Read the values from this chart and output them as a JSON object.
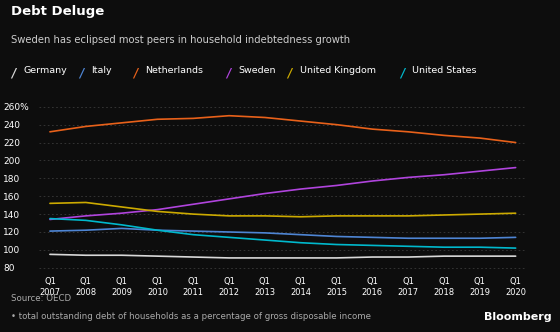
{
  "title": "Debt Deluge",
  "subtitle": "Sweden has eclipsed most peers in household indebtedness growth",
  "source": "Source: OECD",
  "footnote": "• total outstanding debt of households as a percentage of gross disposable income",
  "bloomberg": "Bloomberg",
  "background_color": "#0d0d0d",
  "text_color": "#ffffff",
  "ylim": [
    75,
    268
  ],
  "yticks": [
    80,
    100,
    120,
    140,
    160,
    180,
    200,
    220,
    240,
    260
  ],
  "ytick_labels": [
    "80",
    "100",
    "120",
    "140",
    "160",
    "180",
    "200",
    "220",
    "240",
    "260%"
  ],
  "x_labels": [
    "Q1\n2007",
    "Q1\n2008",
    "Q1\n2009",
    "Q1\n2010",
    "Q1\n2011",
    "Q1\n2012",
    "Q1\n2013",
    "Q1\n2014",
    "Q1\n2015",
    "Q1\n2016",
    "Q1\n2017",
    "Q1\n2018",
    "Q1\n2019",
    "Q1\n2020"
  ],
  "series": {
    "Germany": {
      "color": "#d8d8d8",
      "data": [
        95,
        94,
        94,
        93,
        92,
        91,
        91,
        91,
        91,
        92,
        92,
        93,
        93,
        93
      ]
    },
    "Italy": {
      "color": "#4e85d4",
      "data": [
        121,
        122,
        124,
        122,
        121,
        120,
        119,
        117,
        115,
        114,
        113,
        113,
        113,
        114
      ]
    },
    "Netherlands": {
      "color": "#e8611a",
      "data": [
        232,
        238,
        242,
        246,
        247,
        250,
        248,
        244,
        240,
        235,
        232,
        228,
        225,
        220
      ]
    },
    "Sweden": {
      "color": "#b044dd",
      "data": [
        134,
        138,
        141,
        145,
        151,
        157,
        163,
        168,
        172,
        177,
        181,
        184,
        188,
        192
      ]
    },
    "United Kingdom": {
      "color": "#ccaa00",
      "data": [
        152,
        153,
        148,
        143,
        140,
        138,
        138,
        137,
        138,
        138,
        138,
        139,
        140,
        141
      ]
    },
    "United States": {
      "color": "#00b8cc",
      "data": [
        135,
        133,
        128,
        122,
        117,
        114,
        111,
        108,
        106,
        105,
        104,
        103,
        103,
        102
      ]
    }
  },
  "legend_order": [
    "Germany",
    "Italy",
    "Netherlands",
    "Sweden",
    "United Kingdom",
    "United States"
  ],
  "legend_colors": [
    "#d8d8d8",
    "#4e85d4",
    "#e8611a",
    "#b044dd",
    "#ccaa00",
    "#00b8cc"
  ]
}
